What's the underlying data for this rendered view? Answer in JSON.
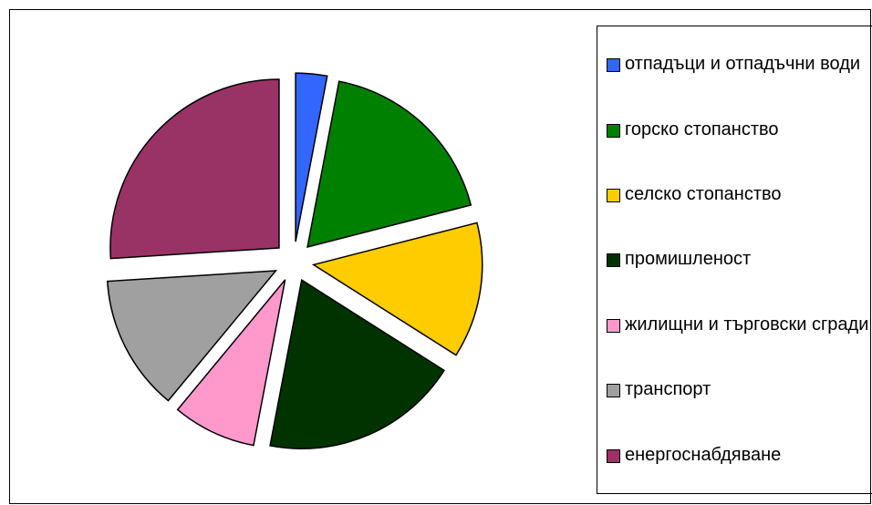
{
  "chart_data": {
    "type": "pie",
    "categories": [
      "отпадъци и отпадъчни води",
      "горско стопанство",
      "селско стопанство",
      "промишленост",
      "жилищни и търговски сгради",
      "транспорт",
      "енергоснабдяване"
    ],
    "values": [
      3,
      18,
      13,
      19,
      8,
      13,
      26
    ],
    "colors": [
      "#3366ff",
      "#008000",
      "#ffcc00",
      "#003300",
      "#ff99cc",
      "#a0a0a0",
      "#993366"
    ],
    "legend": "right"
  }
}
